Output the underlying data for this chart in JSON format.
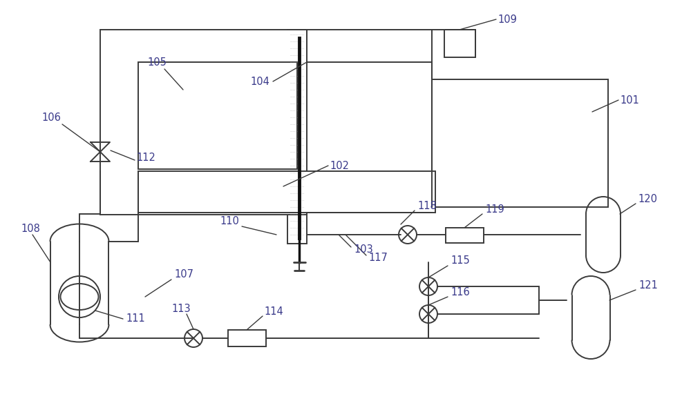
{
  "bg_color": "#ffffff",
  "line_color": "#3a3a3a",
  "label_color": "#3a3a8a",
  "lw": 1.4,
  "label_fs": 10.5,
  "fig_w": 10.0,
  "fig_h": 5.81
}
